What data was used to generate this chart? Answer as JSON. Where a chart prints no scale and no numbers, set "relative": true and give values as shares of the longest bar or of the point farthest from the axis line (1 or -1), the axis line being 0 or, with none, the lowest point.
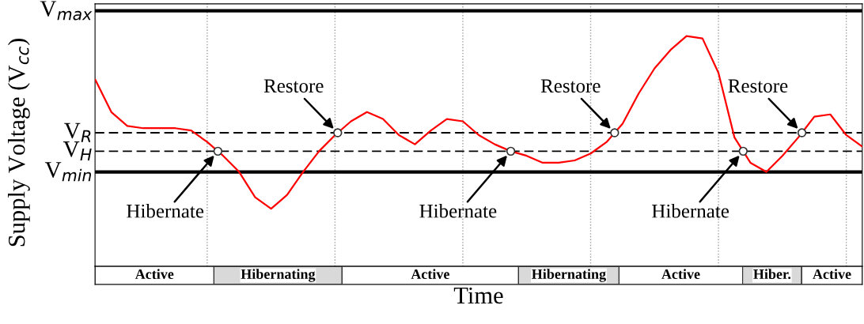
{
  "chart_data": [
    {
      "type": "line",
      "relative": true,
      "ylabel": "Supply Voltage (V$_{cc}$)",
      "grid": "x",
      "categories": [
        null,
        null,
        null,
        null,
        null,
        null,
        null,
        null,
        null,
        null,
        null,
        null,
        null,
        null,
        null,
        null,
        null,
        null,
        null,
        null,
        null,
        null,
        null,
        null,
        null,
        null,
        null,
        null,
        null,
        null,
        null,
        null,
        null,
        null,
        null,
        null,
        null,
        null,
        null,
        null,
        null,
        null,
        null,
        null,
        null,
        null,
        null,
        null,
        null
      ],
      "series": [
        {
          "type": "line",
          "color": "#ff0000",
          "values": [
            0.81,
            0.67,
            0.61,
            0.6,
            0.6,
            0.6,
            0.59,
            0.54,
            0.48,
            0.41,
            0.3,
            0.25,
            0.31,
            0.41,
            0.5,
            0.57,
            0.63,
            0.67,
            0.64,
            0.57,
            0.53,
            0.59,
            0.64,
            0.63,
            0.57,
            0.53,
            0.5,
            0.48,
            0.45,
            0.45,
            0.46,
            0.49,
            0.54,
            0.62,
            0.75,
            0.86,
            0.94,
            1,
            0.99,
            0.84,
            0.56,
            0.45,
            0.41,
            0.48,
            0.56,
            0.65,
            0.66,
            0.57,
            0.52
          ]
        }
      ],
      "ref_lines": [
        {
          "axis": "y",
          "value": 1.11,
          "label": "V$_{max}$",
          "color": "#000000",
          "line_style": "solid"
        },
        {
          "axis": "y",
          "value": 0.58,
          "label": "V$_{R}$",
          "color": "#000000",
          "line_style": "dashed"
        },
        {
          "axis": "y",
          "value": 0.5,
          "label": "V$_{H}$",
          "color": "#000000",
          "line_style": "dashed"
        },
        {
          "axis": "y",
          "value": 0.41,
          "label": "V$_{min}$",
          "color": "#000000",
          "line_style": "solid"
        }
      ],
      "annotations": [
        "Hibernate",
        "Restore",
        "Hibernate",
        "Restore",
        "Hibernate",
        "Restore"
      ]
    },
    {
      "type": "bar",
      "orientation": "horizontal",
      "stacked": true,
      "relative": true,
      "xlabel": "Time",
      "categories": [
        null
      ],
      "series": [
        {
          "name": "Active",
          "color": "#ffffff",
          "values": [
            0.155
          ]
        },
        {
          "name": "Hibernating",
          "color": "#d9d9d9",
          "values": [
            0.167
          ]
        },
        {
          "name": "Active",
          "color": "#ffffff",
          "values": [
            0.23
          ]
        },
        {
          "name": "Hibernating",
          "color": "#d9d9d9",
          "values": [
            0.131
          ]
        },
        {
          "name": "Active",
          "color": "#ffffff",
          "values": [
            0.161
          ]
        },
        {
          "name": "Hiber.",
          "color": "#d9d9d9",
          "values": [
            0.077
          ]
        },
        {
          "name": "Active",
          "color": "#ffffff",
          "values": [
            0.079
          ]
        }
      ]
    }
  ]
}
